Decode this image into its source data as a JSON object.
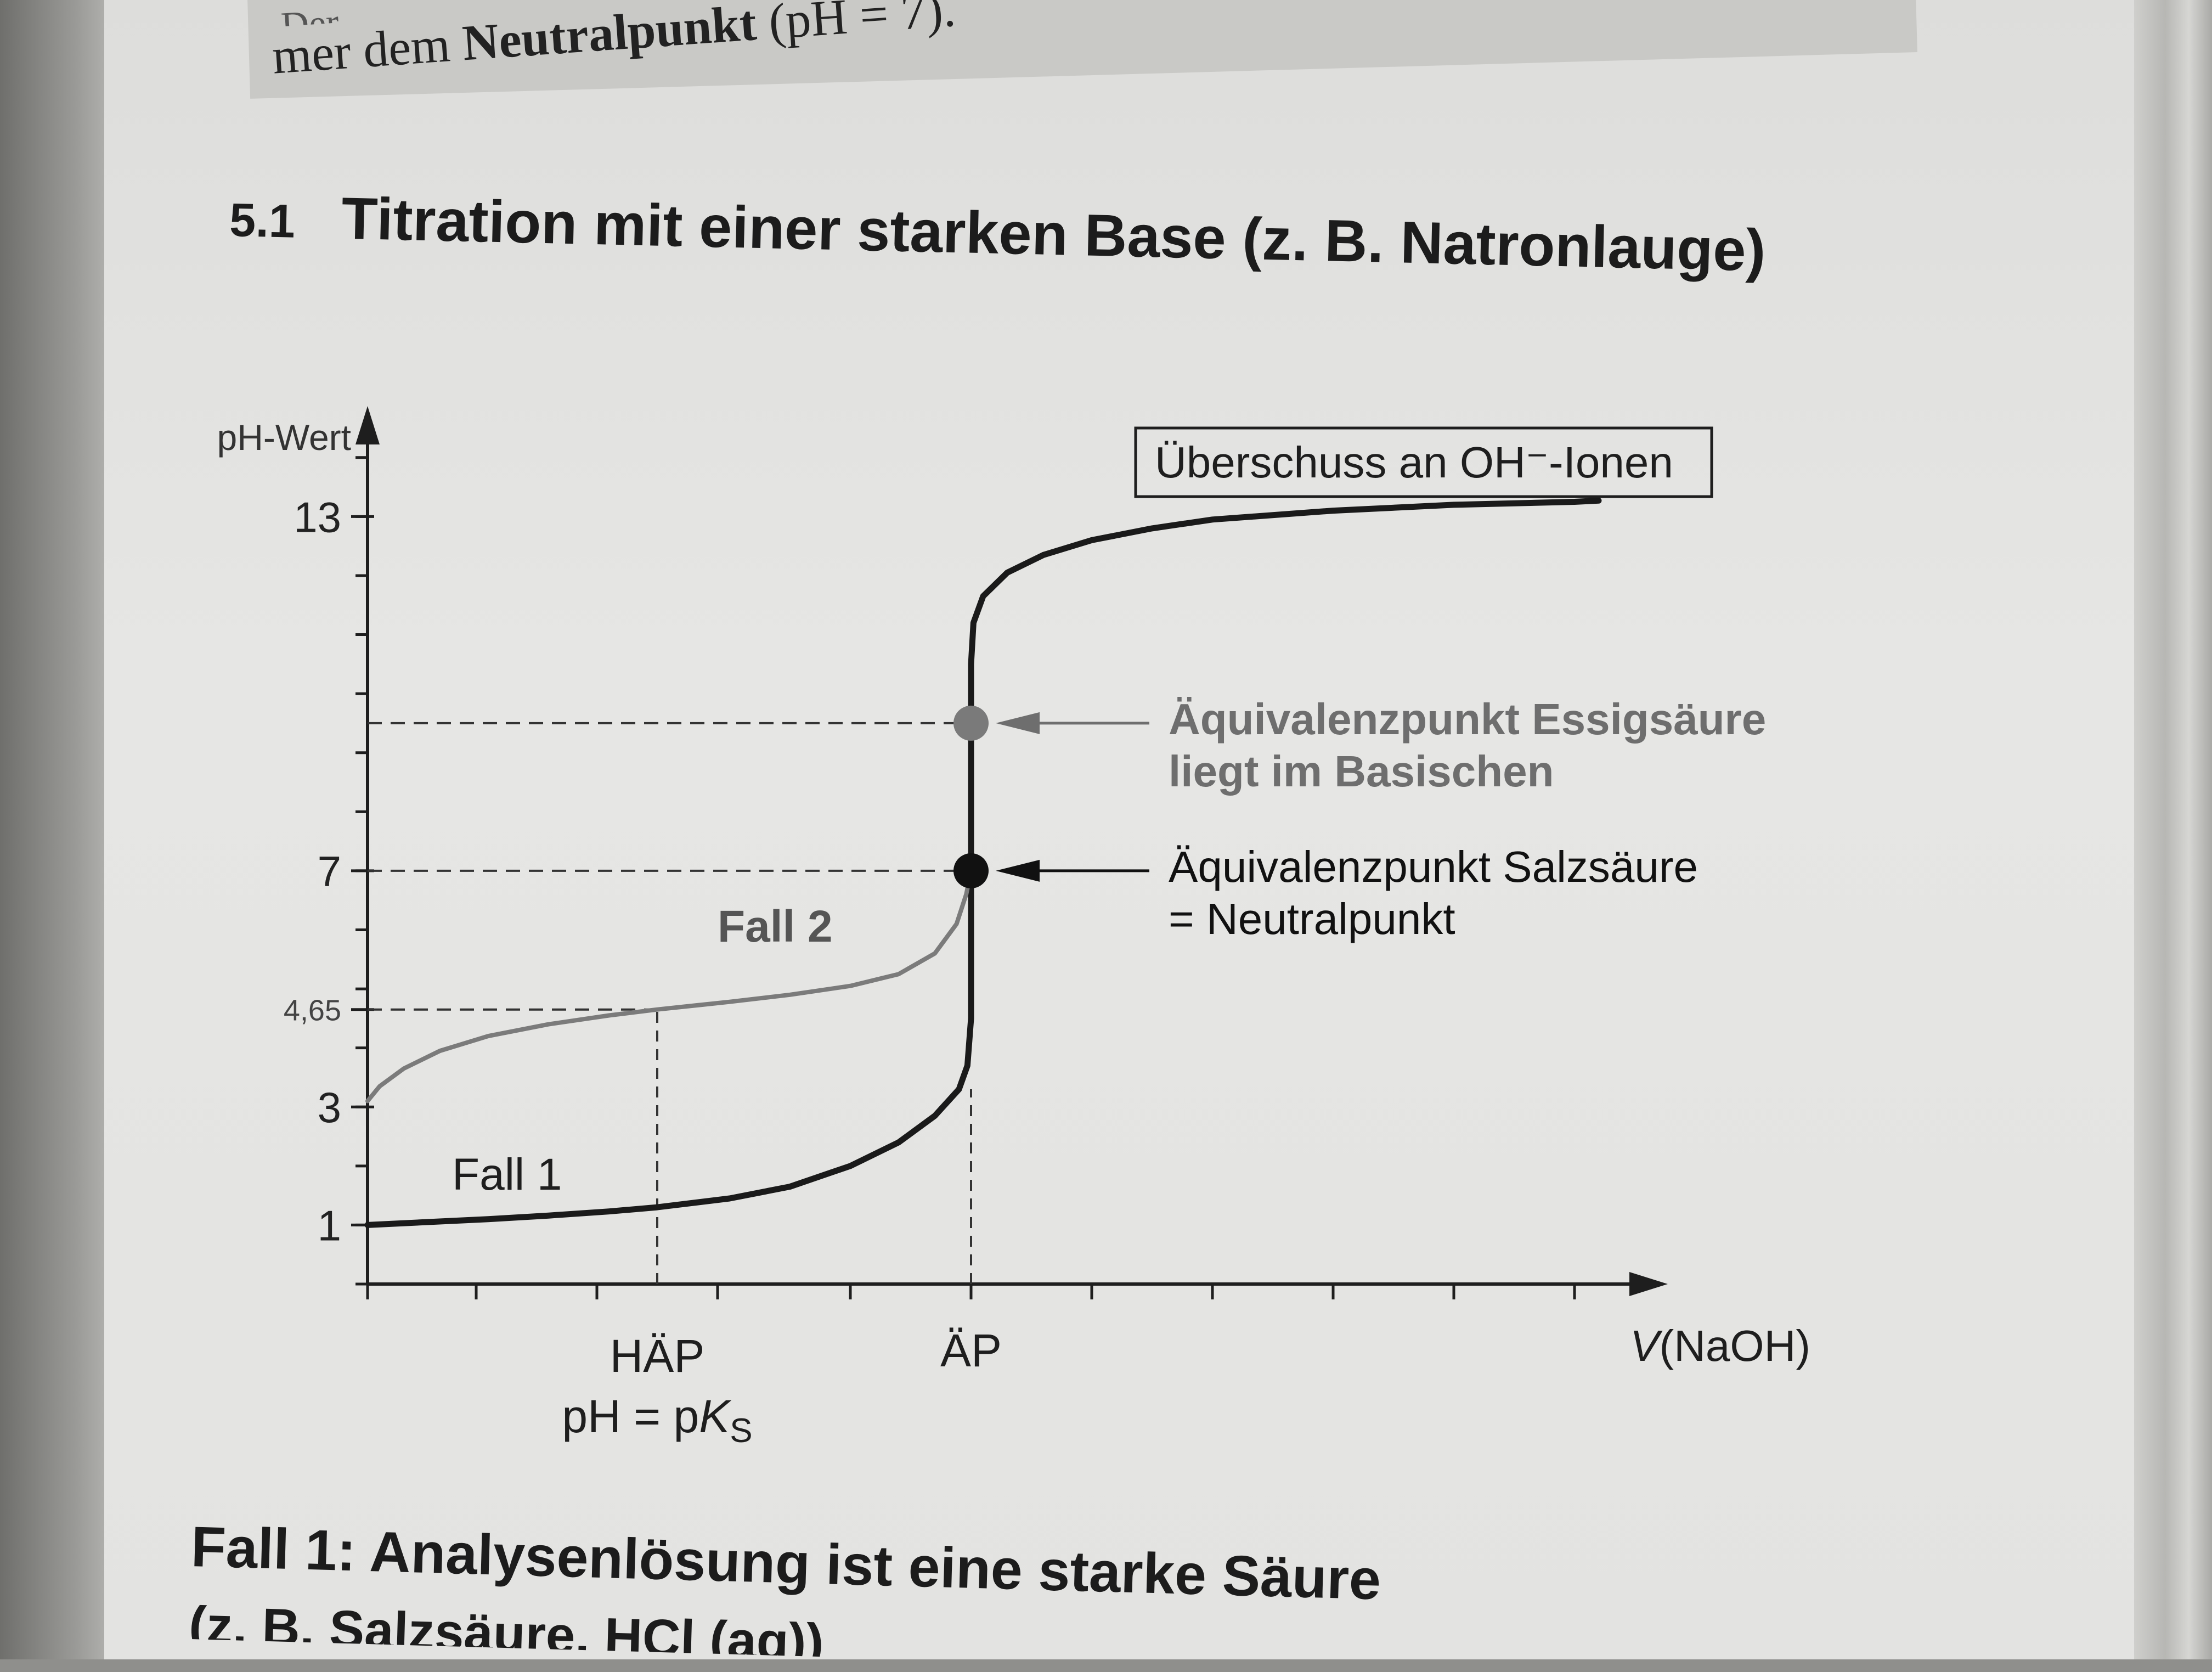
{
  "previous_section": {
    "fragment_line1": "Der",
    "fragment_line2_prefix": "mer dem ",
    "fragment_line2_bold": "Neutralpunkt",
    "fragment_line2_suffix": " (pH = 7)."
  },
  "section": {
    "number": "5.1",
    "title": "Titration mit einer starken Base (z. B. Natronlauge)"
  },
  "chart_data": {
    "type": "line",
    "ylabel": "pH-Wert",
    "xlabel": "V(NaOH)",
    "ylim": [
      0,
      14.5
    ],
    "xlim": [
      0,
      11
    ],
    "y_ticks_labeled": [
      {
        "value": 1,
        "label": "1"
      },
      {
        "value": 3,
        "label": "3"
      },
      {
        "value": 4.65,
        "label": "4,65"
      },
      {
        "value": 7,
        "label": "7"
      },
      {
        "value": 13,
        "label": "13"
      }
    ],
    "y_minor_tick_step": 1,
    "x_tick_positions": [
      0,
      0.9,
      1.9,
      2.9,
      4.0,
      5.0,
      6.0,
      7.0,
      8.0,
      9.0,
      10.0
    ],
    "x_markers": [
      {
        "x": 2.4,
        "label_line1": "HÄP",
        "label_line2": "pH = pK",
        "label_sub": "S"
      },
      {
        "x": 5.0,
        "label_line1": "ÄP"
      }
    ],
    "series": [
      {
        "name": "Fall 1",
        "color": "#1a1a1a",
        "points": [
          [
            0,
            1.0
          ],
          [
            0.5,
            1.05
          ],
          [
            1,
            1.1
          ],
          [
            1.5,
            1.16
          ],
          [
            2,
            1.23
          ],
          [
            2.4,
            1.3
          ],
          [
            3,
            1.45
          ],
          [
            3.5,
            1.65
          ],
          [
            4,
            2.0
          ],
          [
            4.4,
            2.4
          ],
          [
            4.7,
            2.85
          ],
          [
            4.9,
            3.3
          ],
          [
            4.97,
            3.7
          ],
          [
            5.0,
            4.5
          ],
          [
            5.0,
            7.0
          ],
          [
            5.0,
            10.5
          ],
          [
            5.02,
            11.2
          ],
          [
            5.1,
            11.65
          ],
          [
            5.3,
            12.05
          ],
          [
            5.6,
            12.35
          ],
          [
            6,
            12.6
          ],
          [
            6.5,
            12.8
          ],
          [
            7,
            12.95
          ],
          [
            8,
            13.1
          ],
          [
            9,
            13.2
          ],
          [
            10,
            13.25
          ],
          [
            10.2,
            13.27
          ]
        ]
      },
      {
        "name": "Fall 2",
        "color": "#7b7b7b",
        "points": [
          [
            0,
            3.1
          ],
          [
            0.1,
            3.35
          ],
          [
            0.3,
            3.65
          ],
          [
            0.6,
            3.95
          ],
          [
            1,
            4.2
          ],
          [
            1.5,
            4.4
          ],
          [
            2,
            4.55
          ],
          [
            2.4,
            4.65
          ],
          [
            3,
            4.78
          ],
          [
            3.5,
            4.9
          ],
          [
            4,
            5.05
          ],
          [
            4.4,
            5.25
          ],
          [
            4.7,
            5.6
          ],
          [
            4.88,
            6.1
          ],
          [
            4.96,
            6.6
          ],
          [
            5.0,
            7.0
          ]
        ]
      }
    ],
    "points_marked": [
      {
        "x": 5.0,
        "y": 7.0,
        "color": "#111111"
      },
      {
        "x": 5.0,
        "y": 9.5,
        "color": "#7a7a7a"
      }
    ],
    "reference_lines": [
      {
        "orientation": "horizontal",
        "y": 9.5,
        "from_x": 0,
        "to_x": 5.0
      },
      {
        "orientation": "horizontal",
        "y": 7.0,
        "from_x": 0,
        "to_x": 5.0
      },
      {
        "orientation": "horizontal",
        "y": 4.65,
        "from_x": 0,
        "to_x": 2.4
      },
      {
        "orientation": "vertical",
        "x": 2.4,
        "from_y": 0,
        "to_y": 4.65
      },
      {
        "orientation": "vertical",
        "x": 5.0,
        "from_y": 0,
        "to_y": 3.3
      }
    ],
    "annotations": [
      {
        "id": "excess",
        "text": "Überschuss an OH⁻-Ionen",
        "boxed": true
      },
      {
        "id": "eq-acetic",
        "line1": "Äquivalenzpunkt Essigsäure",
        "line2": "liegt im Basischen",
        "points_to_y": 9.5,
        "color": "#6e6e6e"
      },
      {
        "id": "eq-hcl",
        "line1": "Äquivalenzpunkt Salzsäure",
        "line2": "= Neutralpunkt",
        "points_to_y": 7.0,
        "color": "#111111"
      }
    ],
    "series_labels": [
      {
        "text": "Fall 1",
        "series": "Fall 1"
      },
      {
        "text": "Fall 2",
        "series": "Fall 2"
      }
    ],
    "grid": false
  },
  "caption": {
    "line1": "Fall 1: Analysenlösung ist eine starke Säure",
    "line2": "(z. B. Salzsäure, HCl (aq))"
  }
}
